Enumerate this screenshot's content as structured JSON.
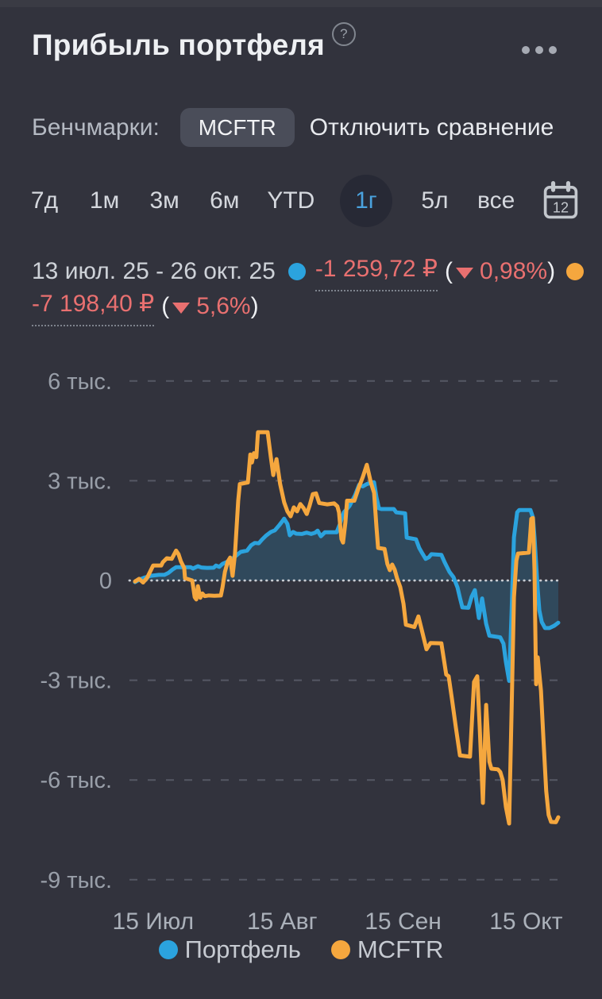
{
  "header": {
    "title": "Прибыль портфеля",
    "help": "?"
  },
  "benchmarks": {
    "label": "Бенчмарки:",
    "chip": "MCFTR",
    "disable_link": "Отключить сравнение"
  },
  "periods": {
    "tabs": [
      {
        "label": "7д",
        "selected": false
      },
      {
        "label": "1м",
        "selected": false
      },
      {
        "label": "3м",
        "selected": false
      },
      {
        "label": "6м",
        "selected": false
      },
      {
        "label": "YTD",
        "selected": false
      },
      {
        "label": "1г",
        "selected": true
      },
      {
        "label": "5л",
        "selected": false
      },
      {
        "label": "все",
        "selected": false
      }
    ],
    "calendar_day": "12"
  },
  "stats": {
    "date_range": "13 июл. 25 - 26 окт. 25",
    "open_paren": "(",
    "close_paren": ")",
    "portfolio": {
      "value": "-1 259,72 ₽",
      "percent": "0,98%",
      "direction": "down"
    },
    "benchmark": {
      "value": "-7 198,40 ₽",
      "percent": "5,6%",
      "direction": "down"
    }
  },
  "colors": {
    "background": "#32333d",
    "portfolio_blue": "#2ba3de",
    "benchmark_orange": "#f5a73e",
    "negative_red": "#e97070",
    "fill_blue": "rgba(42,163,222,0.20)"
  },
  "chart_data": {
    "type": "line",
    "x_unit": "days since 13 Jul 2025",
    "x_range_days": [
      0,
      105
    ],
    "y_range": [
      -9000,
      6000
    ],
    "grid": true,
    "legend_position": "bottom",
    "y_ticks": [
      {
        "value": 6000,
        "label": "6 тыс."
      },
      {
        "value": 3000,
        "label": "3 тыс."
      },
      {
        "value": 0,
        "label": "0"
      },
      {
        "value": -3000,
        "label": "-3 тыс."
      },
      {
        "value": -6000,
        "label": "-6 тыс."
      },
      {
        "value": -9000,
        "label": "-9 тыс."
      }
    ],
    "x_ticks": [
      {
        "day": 4.5,
        "label": "15 Июл"
      },
      {
        "day": 36.5,
        "label": "15 Авг"
      },
      {
        "day": 66.5,
        "label": "15 Сен"
      },
      {
        "day": 97,
        "label": "15 Окт"
      }
    ],
    "legend": [
      {
        "label": "Портфель",
        "color": "#2ba3de"
      },
      {
        "label": "MCFTR",
        "color": "#f5a73e"
      }
    ],
    "series": [
      {
        "name": "Портфель",
        "color": "#2ba3de",
        "fill": true,
        "end_value_rub": -1259.72,
        "end_percent": -0.98,
        "points": [
          [
            0,
            -50
          ],
          [
            1.2,
            30
          ],
          [
            2.4,
            90
          ],
          [
            3.9,
            140
          ],
          [
            5.9,
            170
          ],
          [
            7.3,
            170
          ],
          [
            8.3,
            230
          ],
          [
            9.3,
            330
          ],
          [
            10.2,
            400
          ],
          [
            13.8,
            400
          ],
          [
            14.4,
            360
          ],
          [
            15.6,
            430
          ],
          [
            16.5,
            390
          ],
          [
            17.9,
            380
          ],
          [
            19.5,
            385
          ],
          [
            20.1,
            450
          ],
          [
            20.9,
            410
          ],
          [
            21.7,
            500
          ],
          [
            23,
            570
          ],
          [
            24,
            640
          ],
          [
            25,
            740
          ],
          [
            26.2,
            860
          ],
          [
            27.8,
            900
          ],
          [
            28.8,
            1060
          ],
          [
            29.7,
            1130
          ],
          [
            30.7,
            1120
          ],
          [
            31.5,
            1230
          ],
          [
            32.5,
            1350
          ],
          [
            33.7,
            1460
          ],
          [
            34.7,
            1510
          ],
          [
            35.7,
            1650
          ],
          [
            36.4,
            1760
          ],
          [
            37,
            1860
          ],
          [
            37.8,
            1700
          ],
          [
            38.4,
            1360
          ],
          [
            39.2,
            1460
          ],
          [
            40,
            1410
          ],
          [
            41.4,
            1400
          ],
          [
            42.6,
            1440
          ],
          [
            43.7,
            1400
          ],
          [
            44.7,
            1440
          ],
          [
            45.3,
            1500
          ],
          [
            46.1,
            1330
          ],
          [
            47.1,
            1450
          ],
          [
            50,
            1450
          ],
          [
            50.8,
            1690
          ],
          [
            51.8,
            2050
          ],
          [
            53.2,
            2240
          ],
          [
            54.6,
            2570
          ],
          [
            55.6,
            2880
          ],
          [
            56.5,
            2830
          ],
          [
            57.5,
            2900
          ],
          [
            58.7,
            2950
          ],
          [
            59.3,
            2950
          ],
          [
            59.9,
            2500
          ],
          [
            60.5,
            2170
          ],
          [
            61.1,
            2150
          ],
          [
            64.2,
            2150
          ],
          [
            64.8,
            2050
          ],
          [
            67,
            2020
          ],
          [
            67.4,
            1290
          ],
          [
            69.7,
            1240
          ],
          [
            70.5,
            980
          ],
          [
            71.3,
            810
          ],
          [
            72.1,
            650
          ],
          [
            72.9,
            700
          ],
          [
            73.5,
            790
          ],
          [
            76,
            770
          ],
          [
            76.8,
            550
          ],
          [
            78,
            260
          ],
          [
            79,
            100
          ],
          [
            80,
            -210
          ],
          [
            80.6,
            -520
          ],
          [
            81.2,
            -810
          ],
          [
            82.7,
            -820
          ],
          [
            83.5,
            -490
          ],
          [
            84.3,
            -290
          ],
          [
            85.3,
            -1130
          ],
          [
            86.1,
            -540
          ],
          [
            87.1,
            -1300
          ],
          [
            87.9,
            -1660
          ],
          [
            90.6,
            -1710
          ],
          [
            91.4,
            -1900
          ],
          [
            92,
            -2450
          ],
          [
            92.8,
            -3020
          ],
          [
            93.4,
            -1000
          ],
          [
            94,
            1300
          ],
          [
            94.8,
            2050
          ],
          [
            95.3,
            2120
          ],
          [
            98.1,
            2120
          ],
          [
            98.7,
            1900
          ],
          [
            99.1,
            1290
          ],
          [
            99.5,
            500
          ],
          [
            99.9,
            -290
          ],
          [
            100.3,
            -900
          ],
          [
            100.9,
            -1250
          ],
          [
            101.7,
            -1430
          ],
          [
            102.8,
            -1430
          ],
          [
            104,
            -1360
          ],
          [
            105,
            -1270
          ]
        ]
      },
      {
        "name": "MCFTR",
        "color": "#f5a73e",
        "fill": false,
        "end_value_rub": -7198.4,
        "end_percent": -5.6,
        "points": [
          [
            0,
            -30
          ],
          [
            1,
            50
          ],
          [
            2,
            -60
          ],
          [
            3,
            80
          ],
          [
            4.5,
            450
          ],
          [
            6.5,
            450
          ],
          [
            6.9,
            550
          ],
          [
            7.9,
            670
          ],
          [
            9.1,
            650
          ],
          [
            10.2,
            900
          ],
          [
            10.8,
            790
          ],
          [
            11.4,
            570
          ],
          [
            12.2,
            380
          ],
          [
            12.4,
            70
          ],
          [
            14.2,
            0
          ],
          [
            14.8,
            -500
          ],
          [
            15.2,
            -570
          ],
          [
            15.6,
            -170
          ],
          [
            16.2,
            -520
          ],
          [
            16.7,
            -390
          ],
          [
            17.3,
            -470
          ],
          [
            18.3,
            -450
          ],
          [
            19.7,
            -460
          ],
          [
            21.3,
            -450
          ],
          [
            21.7,
            -210
          ],
          [
            22.3,
            260
          ],
          [
            23,
            570
          ],
          [
            23.6,
            690
          ],
          [
            24.2,
            140
          ],
          [
            24.8,
            800
          ],
          [
            25.2,
            1600
          ],
          [
            25.6,
            2400
          ],
          [
            26,
            2900
          ],
          [
            28,
            2950
          ],
          [
            28.6,
            3790
          ],
          [
            29,
            3550
          ],
          [
            29.5,
            3830
          ],
          [
            30.1,
            3710
          ],
          [
            30.5,
            4460
          ],
          [
            32.9,
            4460
          ],
          [
            33.7,
            3700
          ],
          [
            34.3,
            3170
          ],
          [
            35.1,
            3650
          ],
          [
            36,
            2900
          ],
          [
            37,
            2350
          ],
          [
            37.8,
            2080
          ],
          [
            38.6,
            1930
          ],
          [
            39.4,
            2200
          ],
          [
            40.2,
            2080
          ],
          [
            41,
            2300
          ],
          [
            41.8,
            2180
          ],
          [
            42.6,
            2000
          ],
          [
            43.3,
            2250
          ],
          [
            44.1,
            2600
          ],
          [
            44.9,
            2620
          ],
          [
            45.7,
            2330
          ],
          [
            47.7,
            2290
          ],
          [
            49.4,
            2320
          ],
          [
            50.2,
            2230
          ],
          [
            50.6,
            2050
          ],
          [
            51.2,
            1250
          ],
          [
            51.6,
            1140
          ],
          [
            52.2,
            1760
          ],
          [
            52.6,
            2400
          ],
          [
            54.4,
            2400
          ],
          [
            55.4,
            2760
          ],
          [
            56.5,
            3110
          ],
          [
            57.5,
            3480
          ],
          [
            58.5,
            2950
          ],
          [
            59.3,
            2640
          ],
          [
            59.9,
            1600
          ],
          [
            60.3,
            980
          ],
          [
            61.9,
            950
          ],
          [
            62.6,
            500
          ],
          [
            63.2,
            310
          ],
          [
            63.8,
            480
          ],
          [
            64.4,
            330
          ],
          [
            65,
            70
          ],
          [
            65.8,
            -200
          ],
          [
            66.6,
            -700
          ],
          [
            67.2,
            -1330
          ],
          [
            69.3,
            -1400
          ],
          [
            70.3,
            -1080
          ],
          [
            71.3,
            -1570
          ],
          [
            72.3,
            -2070
          ],
          [
            73.3,
            -1880
          ],
          [
            76,
            -1890
          ],
          [
            76.6,
            -2360
          ],
          [
            77.2,
            -2830
          ],
          [
            77.8,
            -2880
          ],
          [
            78.6,
            -3550
          ],
          [
            79.6,
            -4430
          ],
          [
            80.6,
            -5260
          ],
          [
            83.1,
            -5300
          ],
          [
            84.1,
            -3050
          ],
          [
            84.9,
            -2880
          ],
          [
            85.5,
            -4400
          ],
          [
            86.3,
            -6690
          ],
          [
            87.1,
            -3740
          ],
          [
            87.9,
            -5450
          ],
          [
            88.4,
            -5660
          ],
          [
            90,
            -5680
          ],
          [
            90.6,
            -5760
          ],
          [
            91.2,
            -6000
          ],
          [
            92,
            -6810
          ],
          [
            92.8,
            -7310
          ],
          [
            93.4,
            -4000
          ],
          [
            94,
            -500
          ],
          [
            94.6,
            600
          ],
          [
            95,
            810
          ],
          [
            97.7,
            840
          ],
          [
            98.1,
            1500
          ],
          [
            98.3,
            1860
          ],
          [
            98.7,
            1880
          ],
          [
            99.1,
            300
          ],
          [
            99.3,
            -1500
          ],
          [
            99.5,
            -3120
          ],
          [
            99.9,
            -2310
          ],
          [
            100.7,
            -3310
          ],
          [
            101.3,
            -4740
          ],
          [
            102,
            -6330
          ],
          [
            102.6,
            -7050
          ],
          [
            103.2,
            -7260
          ],
          [
            104.4,
            -7270
          ],
          [
            105,
            -7120
          ]
        ]
      }
    ]
  }
}
